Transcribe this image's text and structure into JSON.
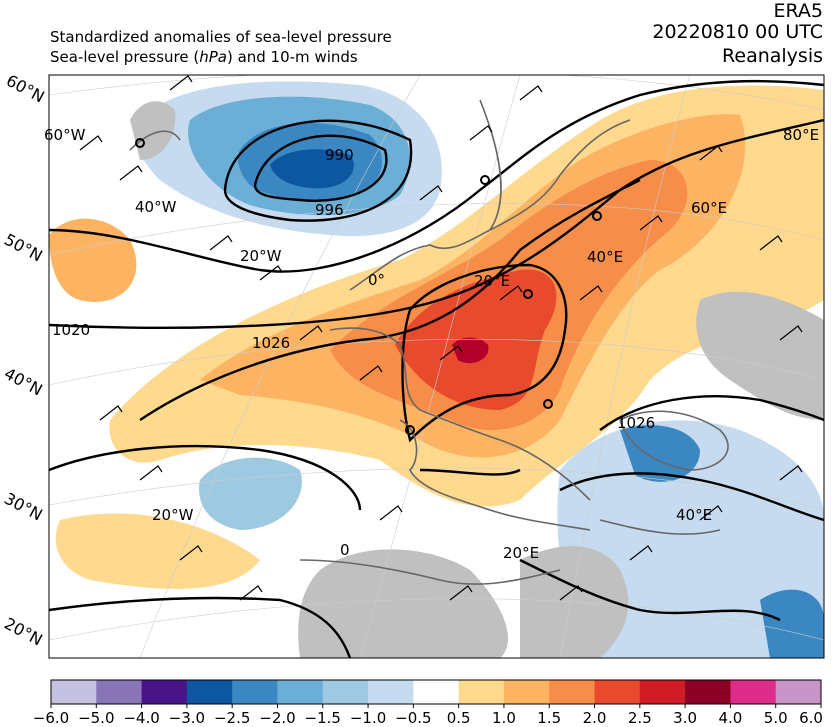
{
  "header": {
    "line1": "Standardized anomalies of sea-level pressure",
    "line2_prefix": "Sea-level pressure (",
    "line2_unit": "hPa",
    "line2_suffix": ") and 10-m winds",
    "dataset": "ERA5",
    "datetime": "20220810 00 UTC",
    "product": "Reanalysis"
  },
  "map": {
    "lat_labels_left": [
      "60°N",
      "50°N",
      "40°N",
      "30°N",
      "20°N"
    ],
    "lon_labels": [
      "60°W",
      "40°W",
      "20°W",
      "0°",
      "20°E",
      "40°E",
      "60°E",
      "80°E",
      "20°W",
      "20°E",
      "40°E"
    ],
    "isobar_labels": [
      "990",
      "996",
      "1020",
      "1026",
      "1026",
      "0"
    ],
    "colors": {
      "neg_strong": "#08519c",
      "neg_mid": "#3182bd",
      "neg_light": "#9ecae1",
      "neg_pale": "#c6dbef",
      "pos_pale": "#fed98e",
      "pos_light": "#fdae61",
      "pos_mid": "#f4793b",
      "pos_strong": "#e03a2e",
      "pos_max": "#b1002a",
      "land_mask": "#c0c0c0",
      "coast": "#666666"
    }
  },
  "colorbar": {
    "ticks": [
      "−6.0",
      "−5.0",
      "−4.0",
      "−3.0",
      "−2.5",
      "−2.0",
      "−1.5",
      "−1.0",
      "−0.5",
      "0.5",
      "1.0",
      "1.5",
      "2.0",
      "2.5",
      "3.0",
      "4.0",
      "5.0",
      "6.0"
    ],
    "colors": [
      "#c5c1e0",
      "#8a74b8",
      "#4a1486",
      "#0d56a0",
      "#3a87c2",
      "#6baed6",
      "#9ecae1",
      "#c6dbef",
      "#ffffff",
      "#fed98e",
      "#fdb462",
      "#f68e4a",
      "#e84a2e",
      "#d01c27",
      "#8b0025",
      "#dd2c89",
      "#c994c7"
    ]
  }
}
